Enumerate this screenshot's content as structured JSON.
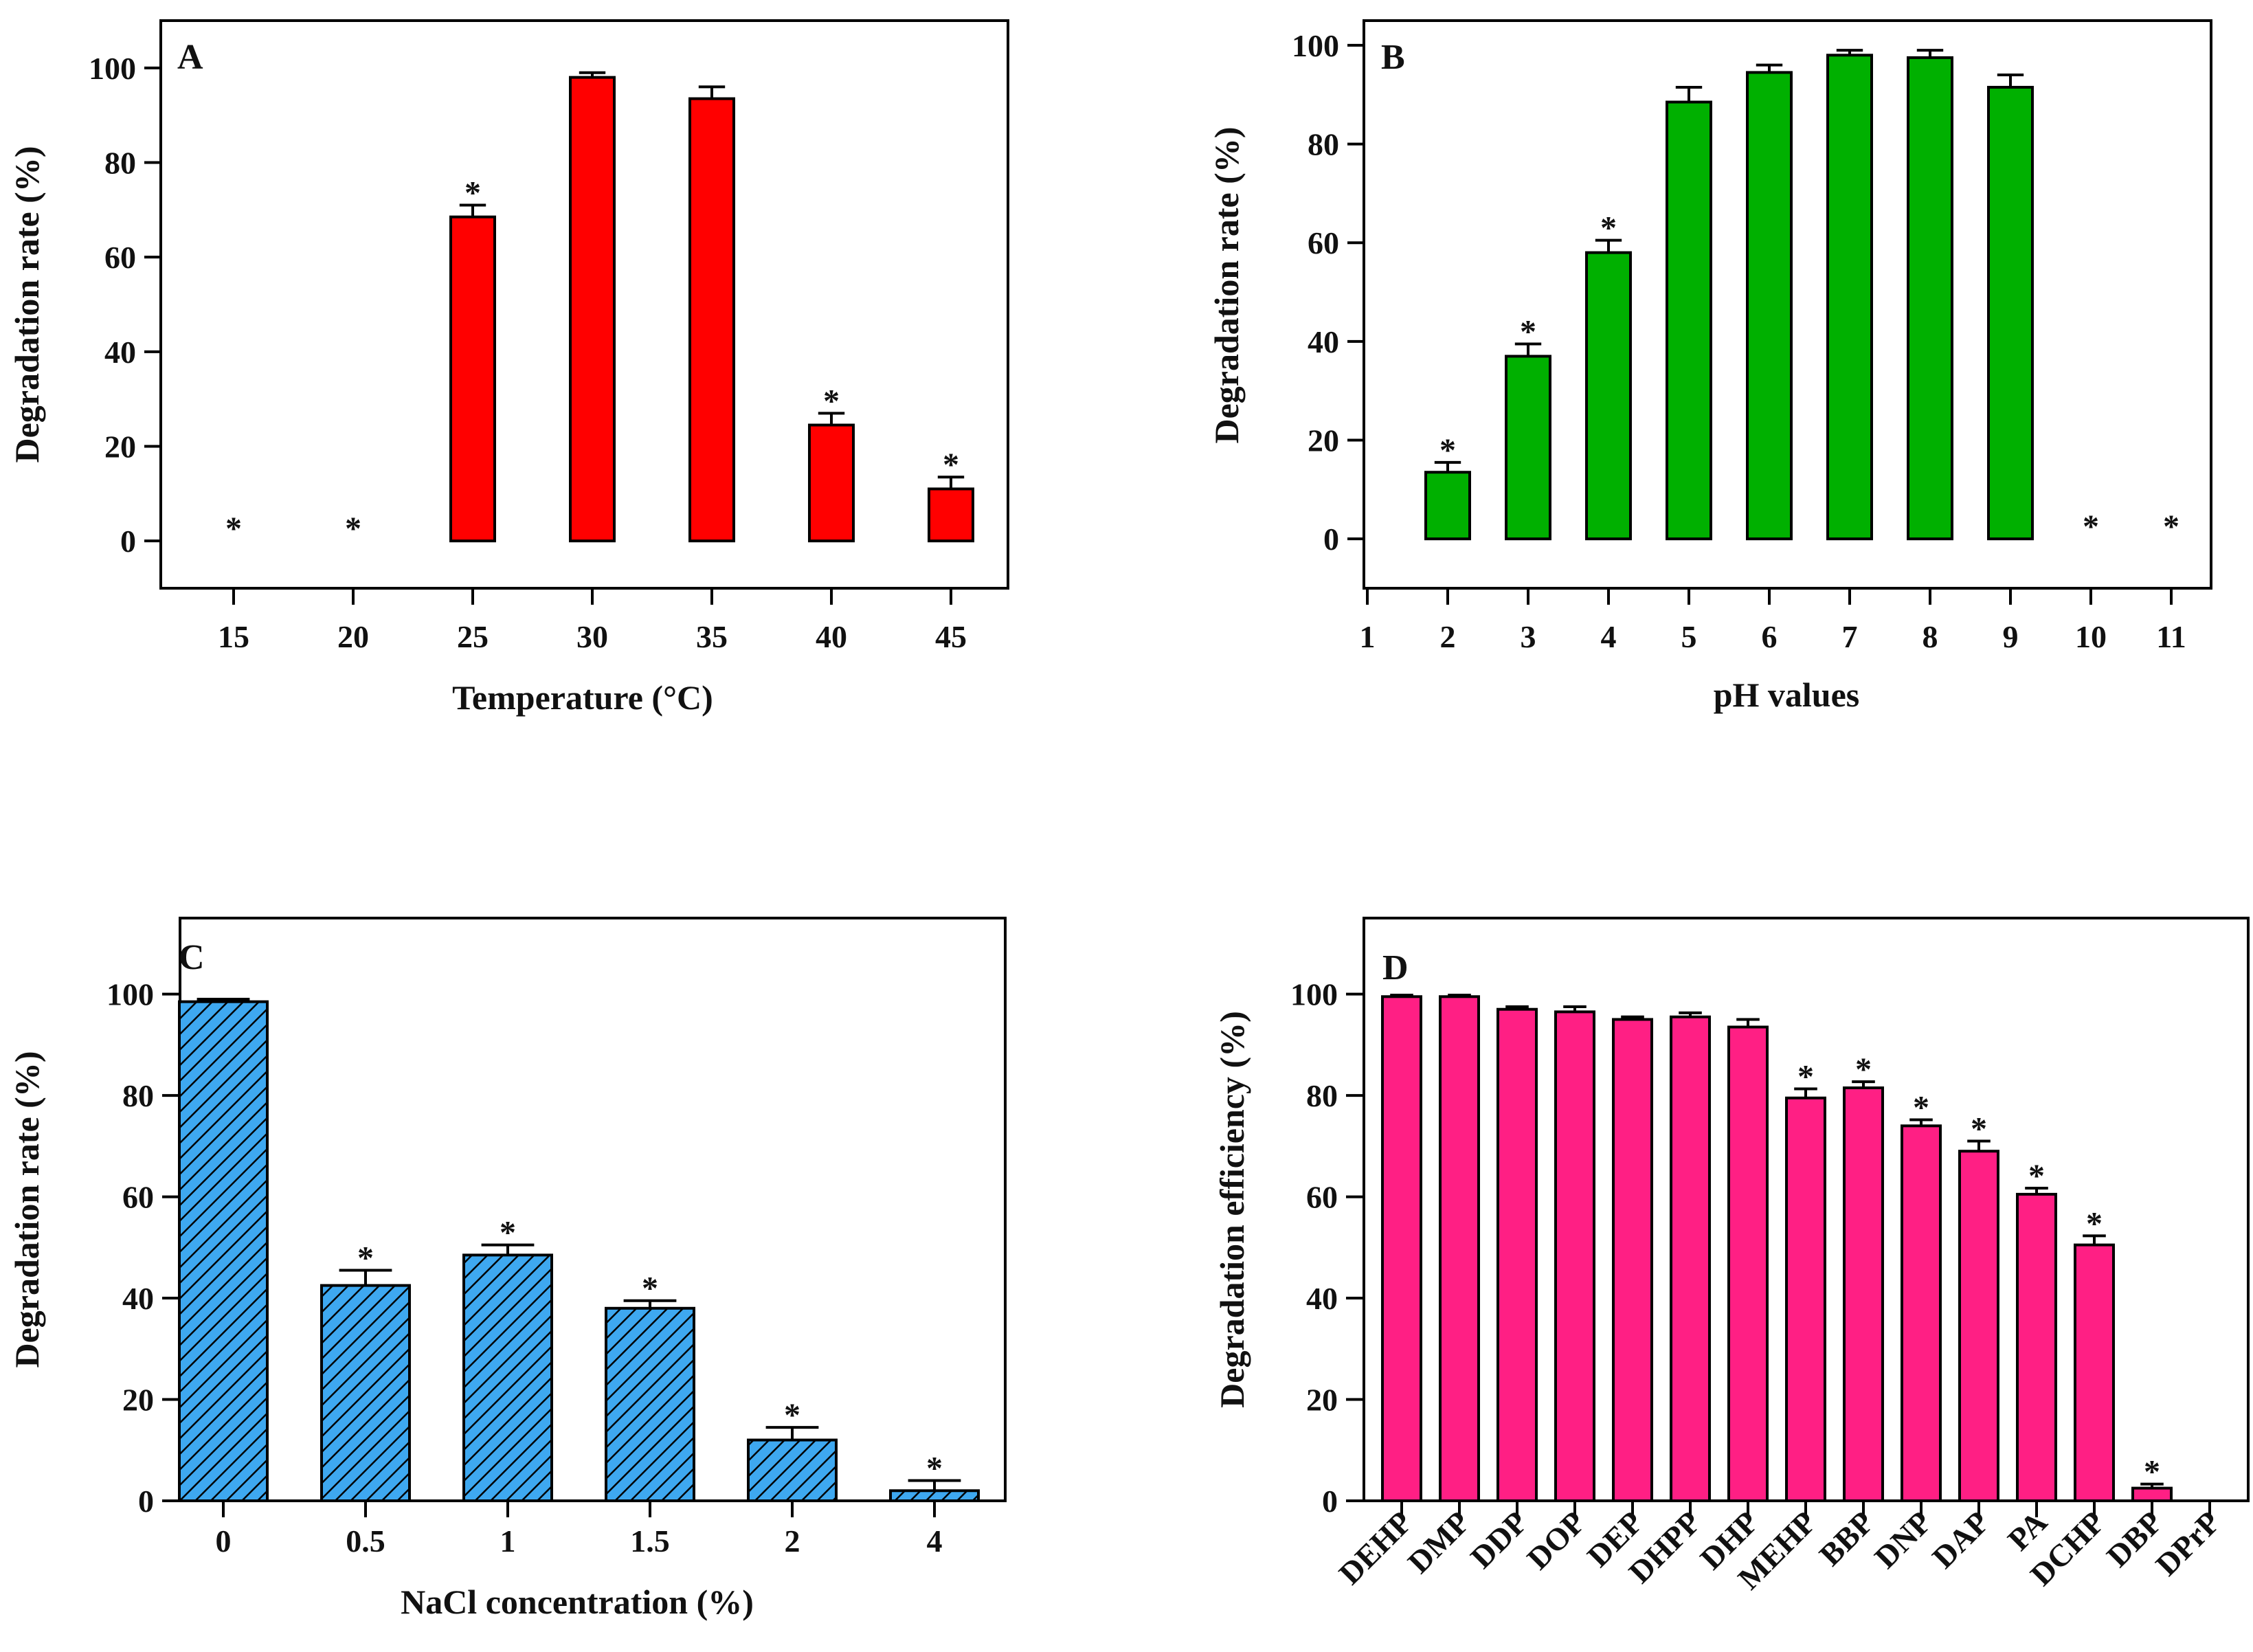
{
  "chart_data": [
    {
      "panel": "A",
      "type": "bar",
      "xlabel": "Temperature (°C)",
      "ylabel": "Degradation rate (%)",
      "ylim": [
        -10,
        110
      ],
      "yticks": [
        0,
        20,
        40,
        60,
        80,
        100
      ],
      "categories": [
        "15",
        "20",
        "25",
        "30",
        "35",
        "40",
        "45"
      ],
      "values": [
        0,
        0,
        68.5,
        98,
        93.5,
        24.5,
        11
      ],
      "errors": [
        0,
        0,
        2.5,
        1,
        2.5,
        2.5,
        2.5
      ],
      "significant": [
        true,
        true,
        true,
        false,
        false,
        true,
        true
      ],
      "significance_mark": "*",
      "color": "#ff0000",
      "pattern": "solid"
    },
    {
      "panel": "B",
      "type": "bar",
      "xlabel": "pH values",
      "ylabel": "Degradation rate (%)",
      "ylim": [
        -10,
        105
      ],
      "yticks": [
        0,
        20,
        40,
        60,
        80,
        100
      ],
      "xticks": [
        "1",
        "2",
        "3",
        "4",
        "5",
        "6",
        "7",
        "8",
        "9",
        "10",
        "11"
      ],
      "categories": [
        "2",
        "3",
        "4",
        "5",
        "6",
        "7",
        "8",
        "9",
        "10",
        "11"
      ],
      "values": [
        13.5,
        37,
        58,
        88.5,
        94.5,
        98,
        97.5,
        91.5,
        0,
        0
      ],
      "errors": [
        2,
        2.5,
        2.5,
        3,
        1.5,
        1,
        1.5,
        2.5,
        0,
        0
      ],
      "significant": [
        true,
        true,
        true,
        false,
        false,
        false,
        false,
        false,
        true,
        true
      ],
      "significance_mark": "*",
      "color": "#00b000",
      "pattern": "solid"
    },
    {
      "panel": "C",
      "type": "bar",
      "xlabel": "NaCl concentration (%)",
      "ylabel": "Degradation rate (%)",
      "ylim": [
        0,
        115
      ],
      "yticks": [
        0,
        20,
        40,
        60,
        80,
        100
      ],
      "categories": [
        "0",
        "0.5",
        "1",
        "1.5",
        "2",
        "4"
      ],
      "values": [
        98.5,
        42.5,
        48.5,
        38,
        12,
        2
      ],
      "errors": [
        0.5,
        3,
        2,
        1.5,
        2.5,
        2
      ],
      "significant": [
        false,
        true,
        true,
        true,
        true,
        true
      ],
      "significance_mark": "*",
      "color": "#3ea8f0",
      "pattern": "hatched"
    },
    {
      "panel": "D",
      "type": "bar",
      "xlabel": "",
      "ylabel": "Degradation efficiency (%)",
      "ylim": [
        0,
        115
      ],
      "yticks": [
        0,
        20,
        40,
        60,
        80,
        100
      ],
      "categories": [
        "DEHP",
        "DMP",
        "DDP",
        "DOP",
        "DEP",
        "DHPP",
        "DHP",
        "MEHP",
        "BBP",
        "DNP",
        "DAP",
        "PA",
        "DCHP",
        "DBP",
        "DPrP"
      ],
      "values": [
        99.5,
        99.5,
        97,
        96.5,
        95,
        95.5,
        93.5,
        79.5,
        81.5,
        74,
        69,
        60.5,
        50.5,
        2.5,
        0
      ],
      "errors": [
        0.3,
        0.3,
        0.5,
        1,
        0.5,
        0.8,
        1.5,
        1.8,
        1.2,
        1.2,
        2,
        1.2,
        1.8,
        0.8,
        0
      ],
      "significant": [
        false,
        false,
        false,
        false,
        false,
        false,
        false,
        true,
        true,
        true,
        true,
        true,
        true,
        true,
        false
      ],
      "significance_mark": "*",
      "color": "#ff1f84",
      "pattern": "solid"
    }
  ]
}
